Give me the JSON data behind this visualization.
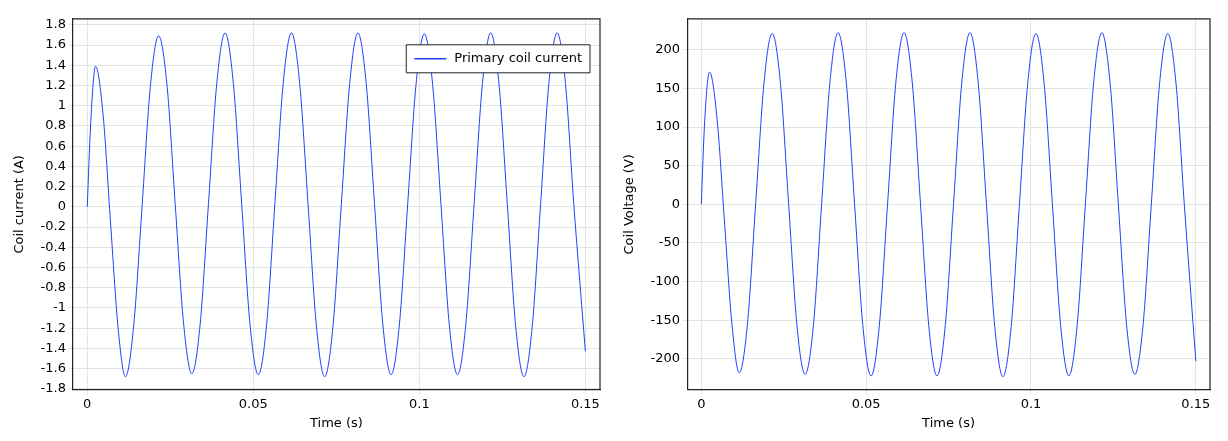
{
  "chart_data": [
    {
      "type": "line",
      "xlabel": "Time (s)",
      "ylabel": "Coil current (A)",
      "xlim": [
        -0.0043,
        0.1544
      ],
      "ylim": [
        -1.81,
        1.86
      ],
      "xticks": [
        0,
        0.05,
        0.1,
        0.15
      ],
      "yticks": [
        -1.8,
        -1.6,
        -1.4,
        -1.2,
        -1,
        -0.8,
        -0.6,
        -0.4,
        -0.2,
        0,
        0.2,
        0.4,
        0.6,
        0.8,
        1,
        1.2,
        1.4,
        1.6,
        1.8
      ],
      "grid": true,
      "legend": "top right",
      "x": [
        0,
        0.001,
        0.0025,
        0.0048,
        0.007,
        0.0093,
        0.0115,
        0.014,
        0.0165,
        0.019,
        0.0215,
        0.024,
        0.0265,
        0.029,
        0.0315,
        0.034,
        0.0365,
        0.039,
        0.0415,
        0.044,
        0.0465,
        0.049,
        0.0515,
        0.054,
        0.0565,
        0.059,
        0.0615,
        0.064,
        0.0665,
        0.069,
        0.0715,
        0.074,
        0.0765,
        0.079,
        0.0815,
        0.084,
        0.0865,
        0.089,
        0.0915,
        0.094,
        0.0965,
        0.099,
        0.1015,
        0.104,
        0.1065,
        0.109,
        0.1115,
        0.114,
        0.1165,
        0.119,
        0.1215,
        0.124,
        0.1265,
        0.129,
        0.1315,
        0.134,
        0.1365,
        0.139,
        0.1415,
        0.144,
        0.1465,
        0.15
      ],
      "series": [
        {
          "name": "Primary coil current",
          "color": "#2040ff",
          "values": [
            0,
            0.8,
            1.39,
            0.9,
            -0.15,
            -1.2,
            -1.68,
            -1.17,
            0.0,
            1.19,
            1.69,
            1.21,
            0.02,
            -1.15,
            -1.65,
            -1.16,
            0.03,
            1.22,
            1.72,
            1.22,
            0.03,
            -1.16,
            -1.66,
            -1.17,
            0.03,
            1.22,
            1.72,
            1.21,
            0.02,
            -1.18,
            -1.68,
            -1.18,
            0.02,
            1.21,
            1.72,
            1.22,
            0.03,
            -1.16,
            -1.66,
            -1.16,
            0.03,
            1.21,
            1.71,
            1.21,
            0.03,
            -1.16,
            -1.66,
            -1.16,
            0.03,
            1.22,
            1.72,
            1.21,
            0.02,
            -1.18,
            -1.68,
            -1.18,
            0.02,
            1.22,
            1.72,
            1.22,
            0.03,
            -1.43
          ]
        }
      ]
    },
    {
      "type": "line",
      "xlabel": "Time (s)",
      "ylabel": "Coil Voltage (V)",
      "xlim": [
        -0.0043,
        0.1543
      ],
      "ylim": [
        -240,
        240
      ],
      "xticks": [
        0,
        0.05,
        0.1,
        0.15
      ],
      "yticks": [
        -200,
        -150,
        -100,
        -50,
        0,
        50,
        100,
        150,
        200
      ],
      "grid": true,
      "x": [
        0,
        0.001,
        0.0025,
        0.0048,
        0.007,
        0.0093,
        0.0115,
        0.014,
        0.0165,
        0.019,
        0.0215,
        0.024,
        0.0265,
        0.029,
        0.0315,
        0.034,
        0.0365,
        0.039,
        0.0415,
        0.044,
        0.0465,
        0.049,
        0.0515,
        0.054,
        0.0565,
        0.059,
        0.0615,
        0.064,
        0.0665,
        0.069,
        0.0715,
        0.074,
        0.0765,
        0.079,
        0.0815,
        0.084,
        0.0865,
        0.089,
        0.0915,
        0.094,
        0.0965,
        0.099,
        0.1015,
        0.104,
        0.1065,
        0.109,
        0.1115,
        0.114,
        0.1165,
        0.119,
        0.1215,
        0.124,
        0.1265,
        0.129,
        0.1315,
        0.134,
        0.1365,
        0.139,
        0.1415,
        0.144,
        0.1465,
        0.15
      ],
      "series": [
        {
          "color": "#2040ff",
          "values": [
            0,
            105,
            171,
            110,
            -20,
            -155,
            -218,
            -155,
            1,
            156,
            221,
            157,
            0,
            -156,
            -220,
            -157,
            0,
            157,
            222,
            157,
            0,
            -157,
            -222,
            -157,
            0,
            157,
            222,
            157,
            0,
            -157,
            -222,
            -157,
            0,
            157,
            222,
            157,
            0,
            -158,
            -223,
            -158,
            0,
            156,
            221,
            156,
            0,
            -157,
            -222,
            -157,
            0,
            157,
            222,
            157,
            0,
            -156,
            -220,
            -156,
            0,
            156,
            221,
            156,
            0,
            -203
          ]
        }
      ]
    }
  ]
}
